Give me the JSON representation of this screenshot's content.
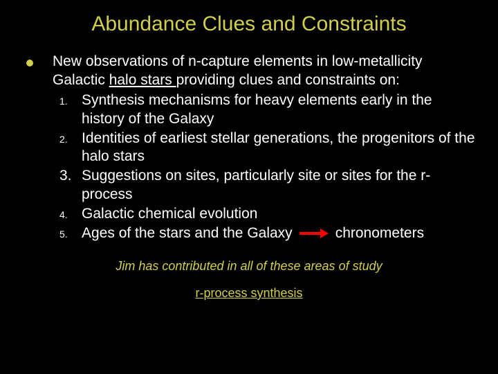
{
  "colors": {
    "background": "#000000",
    "title": "#d1cf4a",
    "body_text": "#ffffff",
    "bullet": "#d1cf4a",
    "arrow": "#ff0000",
    "footer1": "#d1cf4a",
    "footer2": "#d1cf4a"
  },
  "title": "Abundance Clues and Constraints",
  "intro": {
    "pre": "New observations of n-capture elements in low-metallicity Galactic ",
    "link": "halo stars ",
    "post": "providing clues and constraints on:"
  },
  "items": [
    {
      "num": "1.",
      "text": "Synthesis mechanisms for heavy elements early in the history of the Galaxy",
      "num_big": false
    },
    {
      "num": "2.",
      "text": "Identities of earliest stellar generations, the progenitors of the halo stars",
      "num_big": false
    },
    {
      "num": "3.",
      "text": "Suggestions on sites, particularly site or sites for the r-process",
      "num_big": true
    },
    {
      "num": "4.",
      "text": "Galactic chemical evolution",
      "num_big": false
    },
    {
      "num": "5.",
      "text_pre": "Ages of the stars and the Galaxy",
      "text_post": "chronometers",
      "arrow": true,
      "num_big": false
    }
  ],
  "footer1": "Jim has contributed in all of these areas of study",
  "footer2": "r-process  synthesis"
}
